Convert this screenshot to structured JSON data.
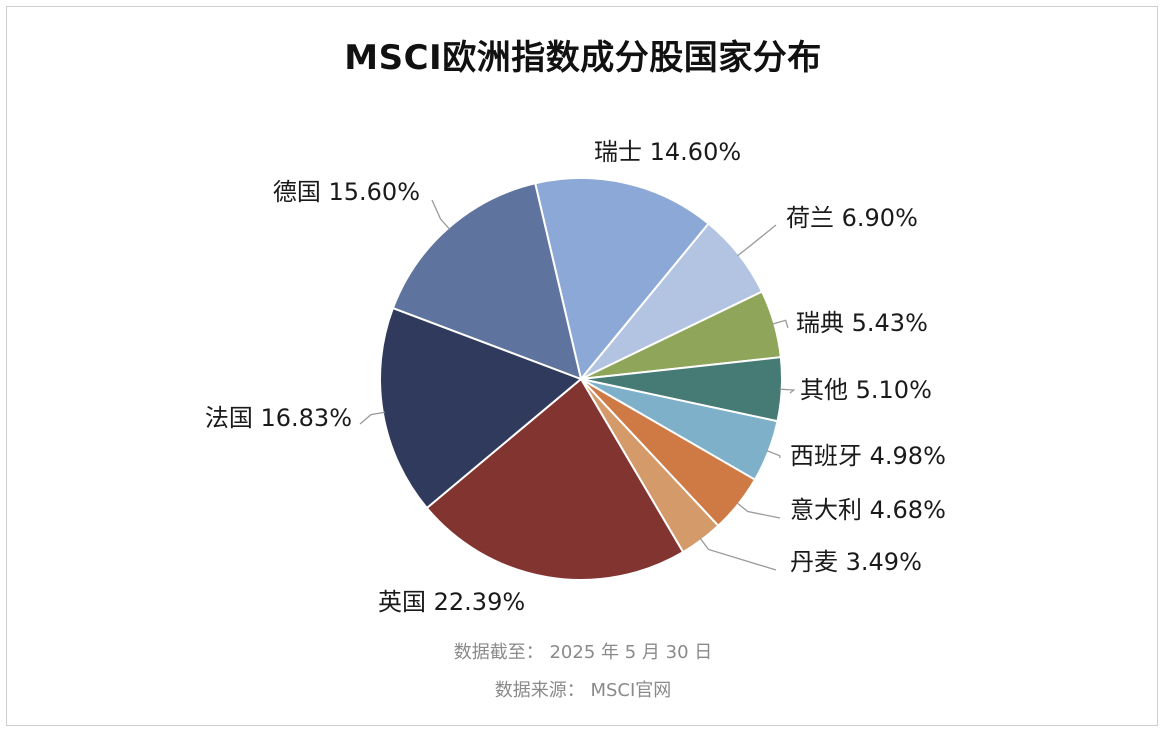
{
  "chart_data": {
    "type": "pie",
    "title": "MSCI欧洲指数成分股国家分布",
    "unit": "%",
    "slices": [
      {
        "label": "瑞士",
        "value": 14.6,
        "display": "14.60%",
        "color": "#8ca8d6"
      },
      {
        "label": "荷兰",
        "value": 6.9,
        "display": "6.90%",
        "color": "#b3c4e2"
      },
      {
        "label": "瑞典",
        "value": 5.43,
        "display": "5.43%",
        "color": "#8fa65a"
      },
      {
        "label": "其他",
        "value": 5.1,
        "display": "5.10%",
        "color": "#467a74"
      },
      {
        "label": "西班牙",
        "value": 4.98,
        "display": "4.98%",
        "color": "#7eb0c9"
      },
      {
        "label": "意大利",
        "value": 4.68,
        "display": "4.68%",
        "color": "#cf7a45"
      },
      {
        "label": "丹麦",
        "value": 3.49,
        "display": "3.49%",
        "color": "#d59a6a"
      },
      {
        "label": "英国",
        "value": 22.39,
        "display": "22.39%",
        "color": "#823430"
      },
      {
        "label": "法国",
        "value": 16.83,
        "display": "16.83%",
        "color": "#2f3a5c"
      },
      {
        "label": "德国",
        "value": 15.6,
        "display": "15.60%",
        "color": "#5f739f"
      }
    ]
  },
  "footnotes": {
    "date": "数据截至： 2025 年 5 月 30 日",
    "source": "数据来源： MSCI官网"
  }
}
